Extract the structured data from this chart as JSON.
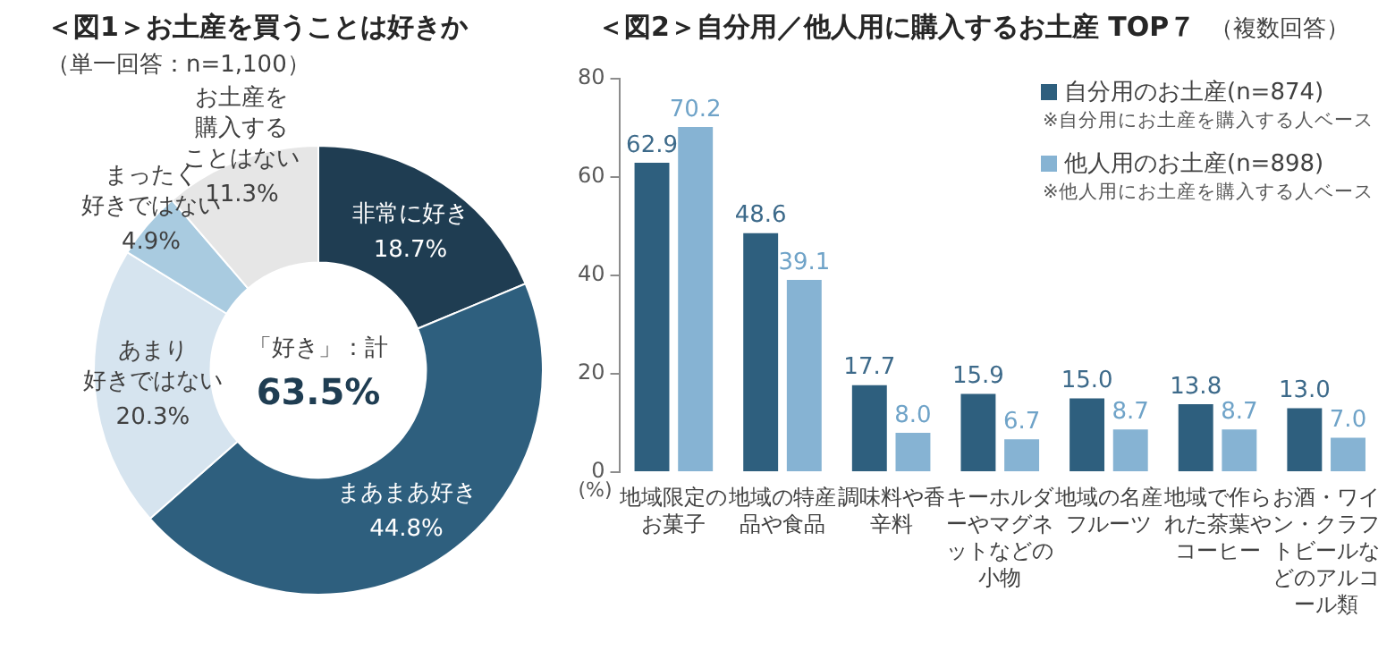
{
  "chart_data": [
    {
      "type": "donut",
      "title": "＜図1＞お土産を買うことは好きか",
      "subtitle": "（単一回答：n=1,100）",
      "categories": [
        "非常に好き",
        "まあまあ好き",
        "あまり好きではない",
        "まったく好きではない",
        "お土産を購入することはない"
      ],
      "values": [
        18.7,
        44.8,
        20.3,
        4.9,
        11.3
      ],
      "value_labels": [
        "18.7%",
        "44.8%",
        "20.3%",
        "4.9%",
        "11.3%"
      ],
      "colors": [
        "#1f3d52",
        "#2e5f7e",
        "#d6e4ef",
        "#a9cbe0",
        "#e6e6e6"
      ],
      "legend": false,
      "annotations": [
        "「好き」：計",
        "63.5%"
      ]
    },
    {
      "type": "bar",
      "title": "＜図2＞自分用／他人用に購入するお土産 TOP７",
      "subtitle": "（複数回答）",
      "categories": [
        "地域限定のお菓子",
        "地域の特産品や食品",
        "調味料や香辛料",
        "キーホルダーやマグネットなどの小物",
        "地域の名産フルーツ",
        "地域で作られた茶葉やコーヒー",
        "お酒・ワイン・クラフトビールなどのアルコール類"
      ],
      "series": [
        {
          "name": "自分用のお土産(n=874)",
          "color": "#2e5f7e",
          "values": [
            62.9,
            48.6,
            17.7,
            15.9,
            15.0,
            13.8,
            13.0
          ],
          "value_labels": [
            "62.9",
            "48.6",
            "17.7",
            "15.9",
            "15.0",
            "13.8",
            "13.0"
          ]
        },
        {
          "name": "他人用のお土産(n=898)",
          "color": "#86b3d3",
          "values": [
            70.2,
            39.1,
            8.0,
            6.7,
            8.7,
            8.7,
            7.0
          ],
          "value_labels": [
            "70.2",
            "39.1",
            "8.0",
            "6.7",
            "8.7",
            "8.7",
            "7.0"
          ]
        }
      ],
      "ylim": [
        0,
        80
      ],
      "yticks": [
        0,
        20,
        40,
        60,
        80
      ],
      "ylabel": "(%)",
      "grid": false,
      "legend": "top right",
      "annotations": [
        "※自分用にお土産を購入する人ベース",
        "※他人用にお土産を購入する人ベース"
      ]
    }
  ]
}
